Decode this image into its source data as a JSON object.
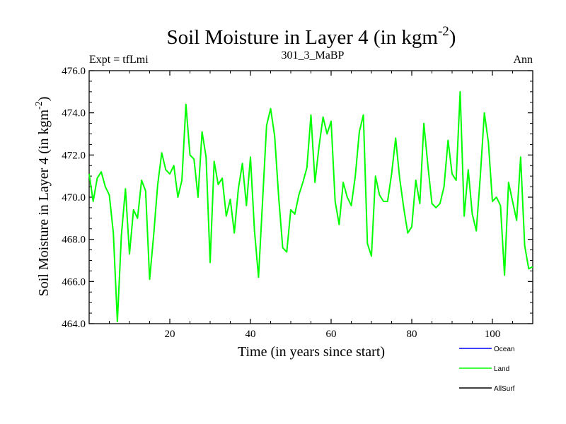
{
  "chart_data": {
    "type": "line",
    "title_main": "Soil Moisture in Layer 4 (in kgm",
    "title_sup": "-2",
    "title_close": ")",
    "subtitle_left": "Expt = tfLmi",
    "subtitle_center": "301_3_MaBP",
    "subtitle_right": "Ann",
    "xlabel": "Time (in years since start)",
    "ylabel_main": "Soil Moisture in Layer 4 (in kgm",
    "ylabel_sup": "-2",
    "ylabel_close": ")",
    "xlim": [
      0,
      110
    ],
    "ylim": [
      464.0,
      476.0
    ],
    "x_ticks": [
      20,
      40,
      60,
      80,
      100
    ],
    "x_tick_labels": [
      "20",
      "40",
      "60",
      "80",
      "100"
    ],
    "y_ticks": [
      464,
      466,
      468,
      470,
      472,
      474,
      476
    ],
    "y_tick_labels": [
      "464.0",
      "466.0",
      "468.0",
      "470.0",
      "472.0",
      "474.0",
      "476.0"
    ],
    "legend": [
      {
        "name": "Ocean",
        "color": "#0000ff"
      },
      {
        "name": "Land",
        "color": "#00ff00"
      },
      {
        "name": "AllSurf",
        "color": "#000000"
      }
    ],
    "series": [
      {
        "name": "Land",
        "color": "#00ff00",
        "x": [
          0,
          1,
          2,
          3,
          4,
          5,
          6,
          7,
          8,
          9,
          10,
          11,
          12,
          13,
          14,
          15,
          16,
          17,
          18,
          19,
          20,
          21,
          22,
          23,
          24,
          25,
          26,
          27,
          28,
          29,
          30,
          31,
          32,
          33,
          34,
          35,
          36,
          37,
          38,
          39,
          40,
          41,
          42,
          43,
          44,
          45,
          46,
          47,
          48,
          49,
          50,
          51,
          52,
          53,
          54,
          55,
          56,
          57,
          58,
          59,
          60,
          61,
          62,
          63,
          64,
          65,
          66,
          67,
          68,
          69,
          70,
          71,
          72,
          73,
          74,
          75,
          76,
          77,
          78,
          79,
          80,
          81,
          82,
          83,
          84,
          85,
          86,
          87,
          88,
          89,
          90,
          91,
          92,
          93,
          94,
          95,
          96,
          97,
          98,
          99,
          100,
          101,
          102,
          103,
          104,
          105,
          106,
          107,
          108,
          109,
          110
        ],
        "values": [
          471.1,
          469.8,
          470.9,
          471.2,
          470.5,
          470.1,
          468.3,
          464.1,
          468.2,
          470.4,
          467.3,
          469.4,
          469.0,
          470.8,
          470.3,
          466.1,
          468.2,
          470.6,
          472.1,
          471.3,
          471.1,
          471.5,
          470.0,
          470.8,
          474.4,
          472.0,
          471.8,
          470.0,
          473.1,
          471.9,
          466.9,
          471.7,
          470.6,
          470.9,
          469.1,
          469.9,
          468.3,
          470.4,
          471.6,
          469.6,
          471.9,
          468.4,
          466.2,
          469.8,
          473.4,
          474.2,
          472.9,
          470.0,
          467.6,
          467.4,
          469.4,
          469.2,
          470.1,
          470.7,
          471.4,
          473.9,
          470.7,
          472.4,
          473.8,
          473.0,
          473.6,
          469.8,
          468.7,
          470.7,
          470.0,
          469.6,
          471.0,
          473.1,
          473.9,
          467.8,
          467.2,
          471.0,
          470.1,
          469.8,
          469.8,
          471.1,
          472.8,
          470.9,
          469.5,
          468.3,
          468.6,
          470.8,
          469.7,
          473.5,
          471.5,
          469.7,
          469.5,
          469.7,
          470.5,
          472.7,
          471.1,
          470.8,
          475.0,
          469.1,
          471.3,
          469.2,
          468.4,
          471.0,
          474.0,
          472.6,
          469.8,
          470.0,
          469.6,
          466.3,
          470.7,
          469.8,
          468.9,
          471.9,
          467.7,
          466.6,
          466.7
        ]
      }
    ]
  }
}
